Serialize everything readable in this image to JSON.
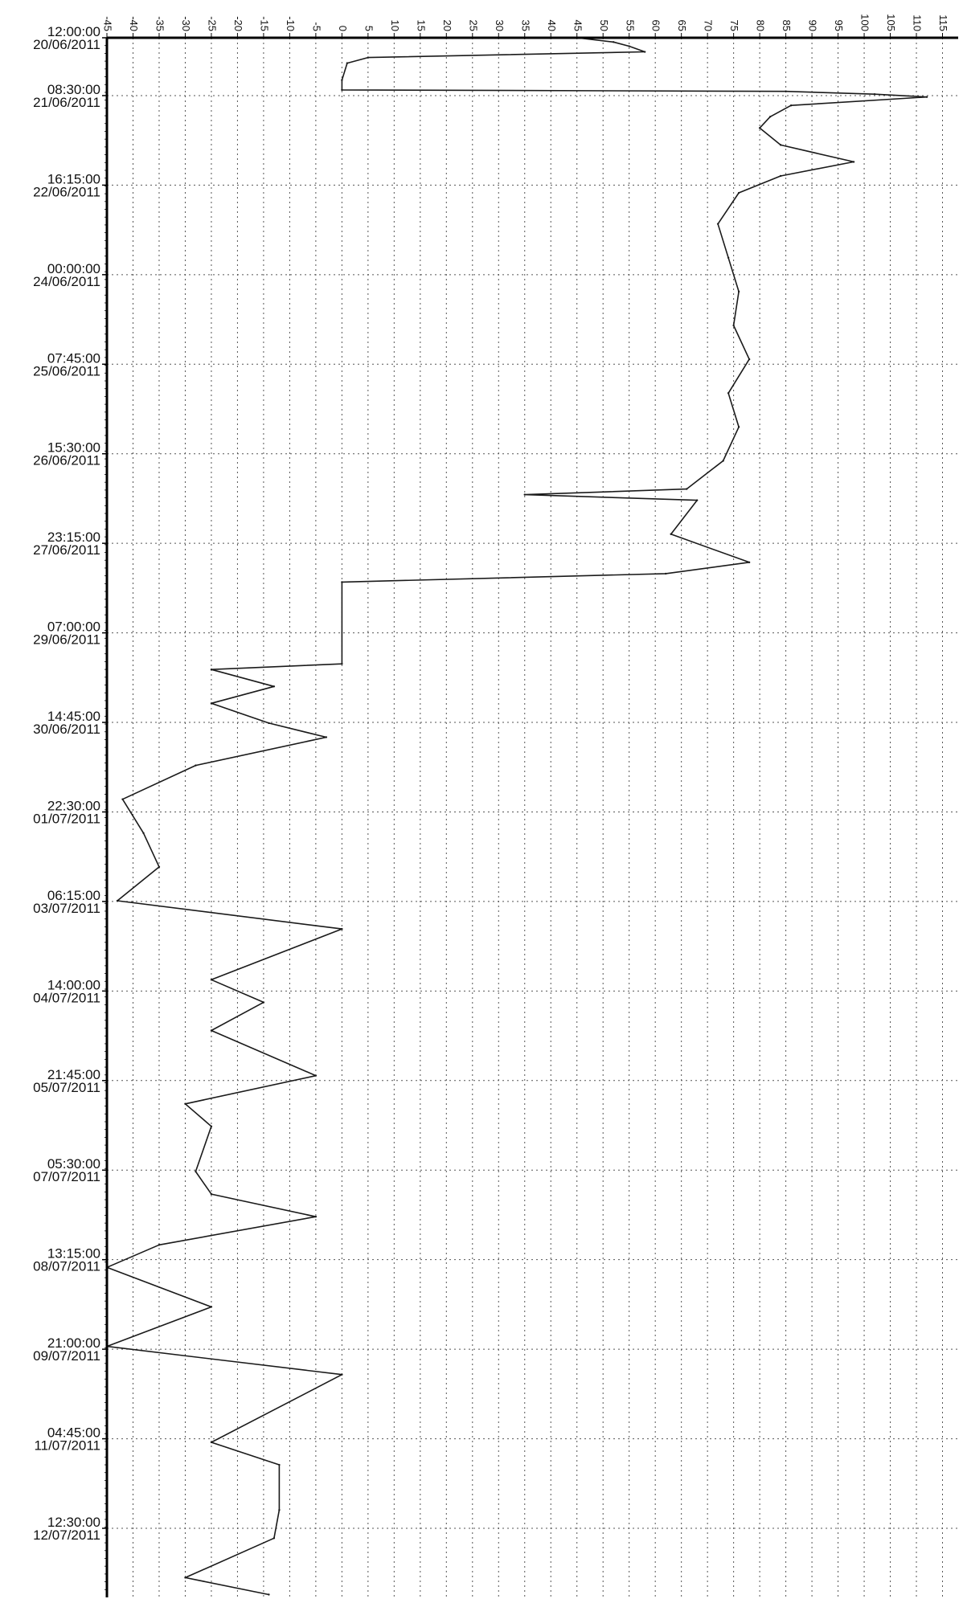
{
  "chart_data": {
    "type": "line",
    "title": "",
    "xlabel": "",
    "ylabel": "",
    "xlim": [
      -45,
      118
    ],
    "x_ticks": [
      -45,
      -40,
      -35,
      -30,
      -25,
      -20,
      -15,
      -10,
      -5,
      0,
      5,
      10,
      15,
      20,
      25,
      30,
      35,
      40,
      45,
      50,
      55,
      60,
      65,
      70,
      75,
      80,
      85,
      90,
      95,
      100,
      105,
      110,
      115
    ],
    "x_tick_labels": [
      "-45",
      "-40",
      "-35",
      "-30",
      "-25",
      "-20",
      "-15",
      "-10",
      "-5",
      "0",
      "5",
      "10",
      "15",
      "20",
      "25",
      "30",
      "35",
      "40",
      "45",
      "50",
      "55",
      "60",
      "65",
      "70",
      "75",
      "80",
      "85",
      "90",
      "95",
      "100",
      "105",
      "110",
      "115"
    ],
    "time_axis": "vertical",
    "time_range": [
      "20/06/2011 12:00:00",
      "13/07/2011 13:00:00"
    ],
    "time_ticks": [
      {
        "time": "12:00:00",
        "date": "20/06/2011"
      },
      {
        "time": "08:30:00",
        "date": "21/06/2011"
      },
      {
        "time": "16:15:00",
        "date": "22/06/2011"
      },
      {
        "time": "00:00:00",
        "date": "24/06/2011"
      },
      {
        "time": "07:45:00",
        "date": "25/06/2011"
      },
      {
        "time": "15:30:00",
        "date": "26/06/2011"
      },
      {
        "time": "23:15:00",
        "date": "27/06/2011"
      },
      {
        "time": "07:00:00",
        "date": "29/06/2011"
      },
      {
        "time": "14:45:00",
        "date": "30/06/2011"
      },
      {
        "time": "22:30:00",
        "date": "01/07/2011"
      },
      {
        "time": "06:15:00",
        "date": "03/07/2011"
      },
      {
        "time": "14:00:00",
        "date": "04/07/2011"
      },
      {
        "time": "21:45:00",
        "date": "05/07/2011"
      },
      {
        "time": "05:30:00",
        "date": "07/07/2011"
      },
      {
        "time": "13:15:00",
        "date": "08/07/2011"
      },
      {
        "time": "21:00:00",
        "date": "09/07/2011"
      },
      {
        "time": "04:45:00",
        "date": "11/07/2011"
      },
      {
        "time": "12:30:00",
        "date": "12/07/2011"
      }
    ],
    "grid": true,
    "series": [
      {
        "color": "#1a1a1a",
        "points": [
          [
            "20/06/2011 12:00",
            45
          ],
          [
            "20/06/2011 13:30",
            52
          ],
          [
            "20/06/2011 15:00",
            55
          ],
          [
            "20/06/2011 17:00",
            58
          ],
          [
            "20/06/2011 19:00",
            5
          ],
          [
            "20/06/2011 21:00",
            1
          ],
          [
            "21/06/2011 03:00",
            0
          ],
          [
            "21/06/2011 06:30",
            0
          ],
          [
            "21/06/2011 07:00",
            85
          ],
          [
            "21/06/2011 08:00",
            102
          ],
          [
            "21/06/2011 09:00",
            112
          ],
          [
            "21/06/2011 12:00",
            86
          ],
          [
            "21/06/2011 16:00",
            82
          ],
          [
            "21/06/2011 20:00",
            80
          ],
          [
            "22/06/2011 02:00",
            84
          ],
          [
            "22/06/2011 08:00",
            98
          ],
          [
            "22/06/2011 13:00",
            84
          ],
          [
            "22/06/2011 19:00",
            76
          ],
          [
            "23/06/2011 06:00",
            72
          ],
          [
            "23/06/2011 18:00",
            74
          ],
          [
            "24/06/2011 06:00",
            76
          ],
          [
            "24/06/2011 18:00",
            75
          ],
          [
            "25/06/2011 06:00",
            78
          ],
          [
            "25/06/2011 18:00",
            74
          ],
          [
            "26/06/2011 06:00",
            76
          ],
          [
            "26/06/2011 18:00",
            73
          ],
          [
            "27/06/2011 04:00",
            66
          ],
          [
            "27/06/2011 06:00",
            35
          ],
          [
            "27/06/2011 08:00",
            68
          ],
          [
            "27/06/2011 20:00",
            63
          ],
          [
            "28/06/2011 06:00",
            78
          ],
          [
            "28/06/2011 10:00",
            62
          ],
          [
            "28/06/2011 13:00",
            0
          ],
          [
            "29/06/2011 18:00",
            0
          ],
          [
            "29/06/2011 20:00",
            -25
          ],
          [
            "30/06/2011 02:00",
            -13
          ],
          [
            "30/06/2011 08:00",
            -25
          ],
          [
            "30/06/2011 15:00",
            -14
          ],
          [
            "30/06/2011 20:00",
            -3
          ],
          [
            "01/07/2011 06:00",
            -28
          ],
          [
            "01/07/2011 18:00",
            -42
          ],
          [
            "02/07/2011 06:00",
            -38
          ],
          [
            "02/07/2011 18:00",
            -35
          ],
          [
            "03/07/2011 06:00",
            -43
          ],
          [
            "03/07/2011 16:00",
            0
          ],
          [
            "04/07/2011 10:00",
            -25
          ],
          [
            "04/07/2011 18:00",
            -15
          ],
          [
            "05/07/2011 04:00",
            -25
          ],
          [
            "05/07/2011 20:00",
            -5
          ],
          [
            "06/07/2011 06:00",
            -30
          ],
          [
            "06/07/2011 14:00",
            -25
          ],
          [
            "07/07/2011 06:00",
            -28
          ],
          [
            "07/07/2011 14:00",
            -25
          ],
          [
            "07/07/2011 22:00",
            -5
          ],
          [
            "08/07/2011 08:00",
            -35
          ],
          [
            "08/07/2011 16:00",
            -45
          ],
          [
            "09/07/2011 06:00",
            -25
          ],
          [
            "09/07/2011 20:00",
            -45
          ],
          [
            "10/07/2011 06:00",
            0
          ],
          [
            "11/07/2011 06:00",
            -25
          ],
          [
            "11/07/2011 14:00",
            -12
          ],
          [
            "12/07/2011 06:00",
            -12
          ],
          [
            "12/07/2011 16:00",
            -13
          ],
          [
            "13/07/2011 06:00",
            -30
          ],
          [
            "13/07/2011 12:00",
            -14
          ]
        ]
      }
    ]
  }
}
